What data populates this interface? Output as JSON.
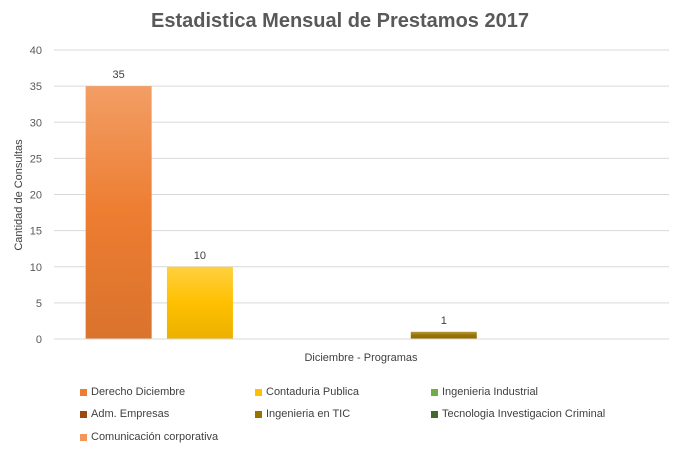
{
  "chart_data": {
    "type": "bar",
    "title": "Estadistica Mensual de Prestamos 2017",
    "xlabel": "Diciembre - Programas",
    "ylabel": "Cantidad de Consultas",
    "ylim": [
      0,
      40
    ],
    "yticks": [
      0,
      5,
      10,
      15,
      20,
      25,
      30,
      35,
      40
    ],
    "grid": true,
    "legend_position": "bottom",
    "category": "Diciembre - Programas",
    "series": [
      {
        "name": "Derecho Diciembre",
        "value": 35,
        "color": "#ED7D31"
      },
      {
        "name": "Contaduria Publica",
        "value": 10,
        "color": "#FFC000"
      },
      {
        "name": "Ingenieria Industrial",
        "value": 0,
        "color": "#70AD47"
      },
      {
        "name": "Adm. Empresas",
        "value": 0,
        "color": "#9E480E"
      },
      {
        "name": "Ingenieria en TIC",
        "value": 1,
        "color": "#997300"
      },
      {
        "name": "Tecnologia Investigacion Criminal",
        "value": 0,
        "color": "#43682B"
      },
      {
        "name": "Comunicación corporativa",
        "value": 0,
        "color": "#F1975A"
      }
    ]
  }
}
